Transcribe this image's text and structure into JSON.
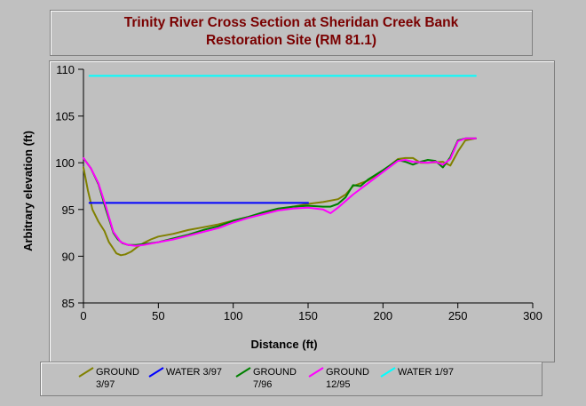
{
  "chart_data": {
    "type": "line",
    "title": "Trinity River Cross Section at Sheridan Creek Bank Restoration Site (RM 81.1)",
    "title_lines": [
      "Trinity River Cross Section at Sheridan Creek Bank",
      "Restoration Site (RM 81.1)"
    ],
    "xlabel": "Distance (ft)",
    "ylabel": "Arbitrary elevation (ft)",
    "xlim": [
      0,
      300
    ],
    "ylim": [
      85,
      110
    ],
    "xticks": [
      "0",
      "50",
      "100",
      "150",
      "200",
      "250",
      "300"
    ],
    "yticks": [
      "85",
      "90",
      "95",
      "100",
      "105",
      "110"
    ],
    "grid": false,
    "legend_position": "bottom",
    "series": [
      {
        "name": "GROUND 3/97",
        "legend_lines": [
          "GROUND",
          "3/97"
        ],
        "color": "#808000",
        "x": [
          0,
          3,
          6,
          10,
          14,
          17,
          20,
          22,
          25,
          28,
          32,
          36,
          40,
          45,
          50,
          60,
          70,
          80,
          90,
          100,
          110,
          120,
          130,
          140,
          150,
          160,
          170,
          175,
          180,
          190,
          200,
          210,
          215,
          220,
          225,
          230,
          240,
          245,
          250,
          255,
          262
        ],
        "y": [
          99.5,
          97,
          95,
          93.7,
          92.7,
          91.5,
          90.8,
          90.3,
          90.1,
          90.2,
          90.5,
          91,
          91.4,
          91.8,
          92.1,
          92.4,
          92.8,
          93.1,
          93.4,
          93.8,
          94.2,
          94.6,
          95,
          95.3,
          95.6,
          95.8,
          96.1,
          96.6,
          97.5,
          98.1,
          99.1,
          100.4,
          100.5,
          100.5,
          100,
          100,
          100.1,
          99.7,
          101.2,
          102.4,
          102.6
        ]
      },
      {
        "name": "WATER 3/97",
        "legend_lines": [
          "WATER 3/97"
        ],
        "color": "#0000ff",
        "x": [
          4,
          150
        ],
        "y": [
          95.7,
          95.7
        ]
      },
      {
        "name": "GROUND 7/96",
        "legend_lines": [
          "GROUND",
          "7/96"
        ],
        "color": "#008000",
        "x": [
          0,
          5,
          10,
          15,
          18,
          20,
          23,
          26,
          30,
          35,
          40,
          50,
          60,
          70,
          80,
          90,
          100,
          110,
          120,
          130,
          140,
          150,
          160,
          165,
          170,
          175,
          180,
          185,
          190,
          200,
          210,
          215,
          220,
          225,
          230,
          235,
          240,
          245,
          250,
          255,
          262
        ],
        "y": [
          100.5,
          99.4,
          97.7,
          95,
          93.5,
          92.5,
          91.8,
          91.4,
          91.2,
          91.2,
          91.3,
          91.5,
          91.9,
          92.3,
          92.8,
          93.2,
          93.8,
          94.2,
          94.7,
          95.1,
          95.3,
          95.4,
          95.3,
          95.3,
          95.6,
          96.3,
          97.6,
          97.5,
          98.2,
          99.2,
          100.3,
          100.1,
          99.8,
          100.1,
          100.3,
          100.2,
          99.5,
          100.6,
          102.4,
          102.6,
          102.6
        ]
      },
      {
        "name": "GROUND 12/95",
        "legend_lines": [
          "GROUND",
          "12/95"
        ],
        "color": "#ff00ff",
        "x": [
          0,
          5,
          10,
          15,
          20,
          25,
          30,
          35,
          40,
          50,
          60,
          70,
          80,
          90,
          100,
          110,
          120,
          130,
          140,
          150,
          160,
          165,
          170,
          180,
          190,
          200,
          210,
          215,
          220,
          230,
          235,
          240,
          245,
          250,
          255,
          262
        ],
        "y": [
          100.5,
          99.4,
          97.8,
          95.3,
          92.6,
          91.5,
          91.2,
          91.1,
          91.2,
          91.5,
          91.8,
          92.2,
          92.6,
          93,
          93.6,
          94.1,
          94.5,
          94.9,
          95.1,
          95.2,
          95,
          94.6,
          95.2,
          96.6,
          97.8,
          99,
          100.2,
          100.3,
          100.1,
          100,
          100.1,
          99.8,
          100.4,
          102.3,
          102.6,
          102.6
        ]
      },
      {
        "name": "WATER 1/97",
        "legend_lines": [
          "WATER 1/97"
        ],
        "color": "#00ffff",
        "x": [
          4,
          262
        ],
        "y": [
          109.3,
          109.3
        ]
      }
    ]
  }
}
